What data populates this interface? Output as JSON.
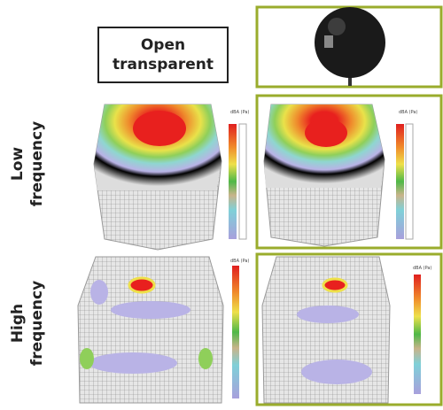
{
  "header": {
    "title": "Open transparent"
  },
  "rows": [
    {
      "label": "Low frequency"
    },
    {
      "label": "High frequency"
    }
  ],
  "panels": [
    {
      "unit": "dBA (Pa)"
    },
    {
      "unit": "dBA (Pa)"
    },
    {
      "unit": "dBA (Pa)"
    },
    {
      "unit": "dBA (Pa)"
    }
  ]
}
